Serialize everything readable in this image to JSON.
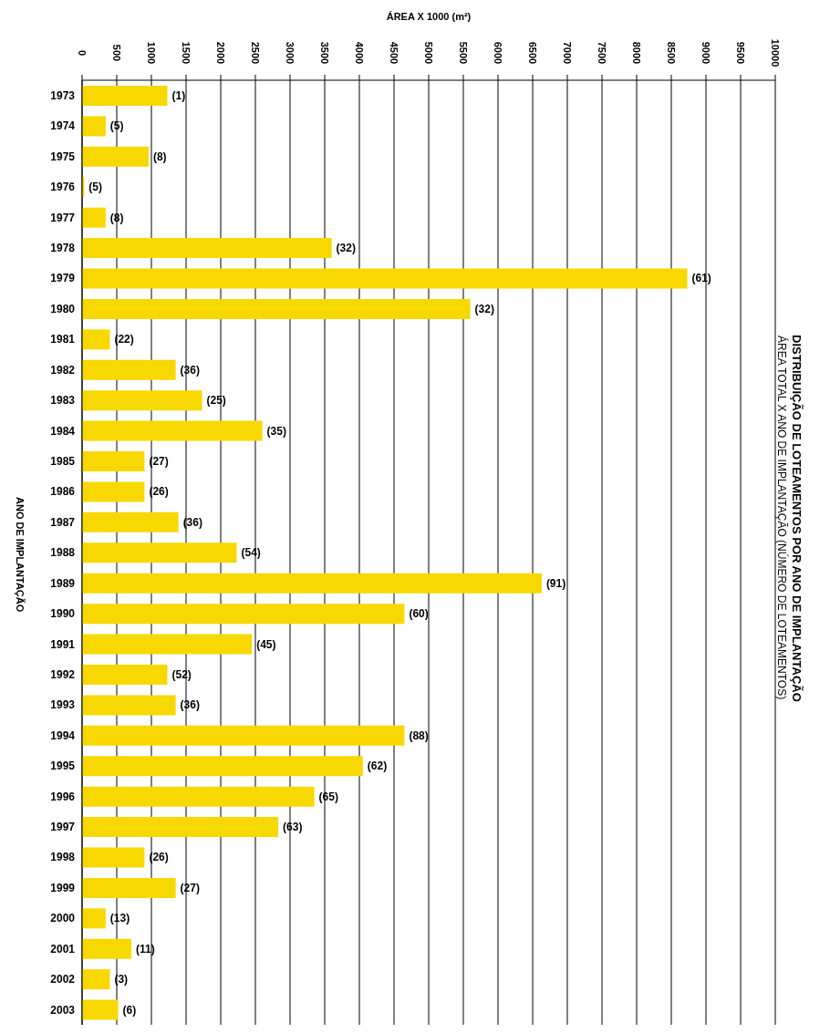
{
  "chart_data": {
    "type": "bar",
    "orientation": "horizontal",
    "title": "DISTRIBUIÇÃO DE LOTEAMENTOS POR ANO DE IMPLANTAÇÃO",
    "subtitle": "ÁREA TOTAL  X  ANO DE IMPLANTAÇÃO (NÚMERO DE LOTEAMENTOS)",
    "xlabel": "ÁREA X 1000 (m²)",
    "ylabel": "ANO DE IMPLANTAÇÃO",
    "categories": [
      "1973",
      "1974",
      "1975",
      "1976",
      "1977",
      "1978",
      "1979",
      "1980",
      "1981",
      "1982",
      "1983",
      "1984",
      "1985",
      "1986",
      "1987",
      "1988",
      "1989",
      "1990",
      "1991",
      "1992",
      "1993",
      "1994",
      "1995",
      "1996",
      "1997",
      "1998",
      "1999",
      "2000",
      "2001",
      "2002",
      "2003"
    ],
    "values": [
      1230,
      340,
      960,
      30,
      340,
      3600,
      8730,
      5600,
      400,
      1350,
      1730,
      2600,
      900,
      900,
      1390,
      2230,
      6630,
      4650,
      2450,
      1230,
      1350,
      4650,
      4050,
      3350,
      2830,
      900,
      1350,
      340,
      710,
      400,
      520
    ],
    "color": "#f7d800",
    "xlim": [
      0,
      10000
    ],
    "xticks": [
      0,
      500,
      1000,
      1500,
      2000,
      2500,
      3000,
      3500,
      4000,
      4500,
      5000,
      5500,
      6000,
      6500,
      7000,
      7500,
      8000,
      8500,
      9000,
      9500,
      10000
    ],
    "grid": "x",
    "annotations": [
      {
        "text": "(1)",
        "x": 1230,
        "y": "1973"
      },
      {
        "text": "(5)",
        "x": 340,
        "y": "1974"
      },
      {
        "text": "(8)",
        "x": 960,
        "y": "1975"
      },
      {
        "text": "(5)",
        "x": 30,
        "y": "1976"
      },
      {
        "text": "(8)",
        "x": 340,
        "y": "1977"
      },
      {
        "text": "(32)",
        "x": 3600,
        "y": "1978"
      },
      {
        "text": "(61)",
        "x": 8730,
        "y": "1979"
      },
      {
        "text": "(32)",
        "x": 5600,
        "y": "1980"
      },
      {
        "text": "(22)",
        "x": 400,
        "y": "1981"
      },
      {
        "text": "(36)",
        "x": 1350,
        "y": "1982"
      },
      {
        "text": "(25)",
        "x": 1730,
        "y": "1983"
      },
      {
        "text": "(35)",
        "x": 2600,
        "y": "1984"
      },
      {
        "text": "(27)",
        "x": 900,
        "y": "1985"
      },
      {
        "text": "(26)",
        "x": 900,
        "y": "1986"
      },
      {
        "text": "(36)",
        "x": 1390,
        "y": "1987"
      },
      {
        "text": "(54)",
        "x": 2230,
        "y": "1988"
      },
      {
        "text": "(91)",
        "x": 6630,
        "y": "1989"
      },
      {
        "text": "(60)",
        "x": 4650,
        "y": "1990"
      },
      {
        "text": "(45)",
        "x": 2450,
        "y": "1991"
      },
      {
        "text": "(52)",
        "x": 1230,
        "y": "1992"
      },
      {
        "text": "(36)",
        "x": 1350,
        "y": "1993"
      },
      {
        "text": "(88)",
        "x": 4650,
        "y": "1994"
      },
      {
        "text": "(62)",
        "x": 4050,
        "y": "1995"
      },
      {
        "text": "(65)",
        "x": 3350,
        "y": "1996"
      },
      {
        "text": "(63)",
        "x": 2830,
        "y": "1997"
      },
      {
        "text": "(26)",
        "x": 900,
        "y": "1998"
      },
      {
        "text": "(27)",
        "x": 1350,
        "y": "1999"
      },
      {
        "text": "(13)",
        "x": 340,
        "y": "2000"
      },
      {
        "text": "(11)",
        "x": 710,
        "y": "2001"
      },
      {
        "text": "(3)",
        "x": 400,
        "y": "2002"
      },
      {
        "text": "(6)",
        "x": 520,
        "y": "2003"
      }
    ]
  }
}
